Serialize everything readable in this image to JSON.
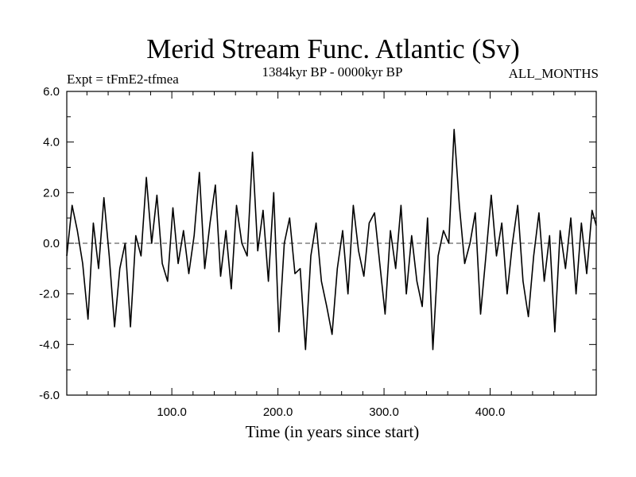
{
  "chart_data": {
    "type": "line",
    "title": "Merid Stream Func. Atlantic (Sv)",
    "subtitle_left": "Expt = tFmE2-tfmea",
    "subtitle_center": "1384kyr BP - 0000kyr BP",
    "subtitle_right": "ALL_MONTHS",
    "xlabel": "Time (in years since start)",
    "ylabel": "",
    "xlim": [
      1,
      500
    ],
    "ylim": [
      -6,
      6
    ],
    "xticks": [
      100,
      200,
      300,
      400
    ],
    "xtick_labels": [
      "100.0",
      "200.0",
      "300.0",
      "400.0"
    ],
    "yticks": [
      -6,
      -4,
      -2,
      0,
      2,
      4,
      6
    ],
    "ytick_labels": [
      "-6.0",
      "-4.0",
      "-2.0",
      "0.0",
      "2.0",
      "4.0",
      "6.0"
    ],
    "zero_line": "dashed",
    "series": [
      {
        "name": "Merid Stream Func. Atlantic",
        "x": [
          1,
          6,
          11,
          16,
          21,
          26,
          31,
          36,
          41,
          46,
          51,
          56,
          61,
          66,
          71,
          76,
          81,
          86,
          91,
          96,
          101,
          106,
          111,
          116,
          121,
          126,
          131,
          136,
          141,
          146,
          151,
          156,
          161,
          166,
          171,
          176,
          181,
          186,
          191,
          196,
          201,
          206,
          211,
          216,
          221,
          226,
          231,
          236,
          241,
          246,
          251,
          256,
          261,
          266,
          271,
          276,
          281,
          286,
          291,
          296,
          301,
          306,
          311,
          316,
          321,
          326,
          331,
          336,
          341,
          346,
          351,
          356,
          361,
          366,
          371,
          376,
          381,
          386,
          391,
          396,
          401,
          406,
          411,
          416,
          421,
          426,
          431,
          436,
          441,
          446,
          451,
          456,
          461,
          466,
          471,
          476,
          481,
          486,
          491,
          496,
          500
        ],
        "values": [
          -0.5,
          1.5,
          0.5,
          -0.8,
          -3.0,
          0.8,
          -1.0,
          1.8,
          -0.5,
          -3.3,
          -1.0,
          0.0,
          -3.3,
          0.3,
          -0.5,
          2.6,
          0.0,
          1.9,
          -0.8,
          -1.5,
          1.4,
          -0.8,
          0.5,
          -1.2,
          0.3,
          2.8,
          -1.0,
          0.8,
          2.3,
          -1.3,
          0.5,
          -1.8,
          1.5,
          0.0,
          -0.5,
          3.6,
          -0.3,
          1.3,
          -1.5,
          2.0,
          -3.5,
          0.0,
          1.0,
          -1.2,
          -1.0,
          -4.2,
          -0.5,
          0.8,
          -1.5,
          -2.5,
          -3.6,
          -1.0,
          0.5,
          -2.0,
          1.5,
          -0.3,
          -1.3,
          0.8,
          1.2,
          -0.8,
          -2.8,
          0.5,
          -1.0,
          1.5,
          -2.0,
          0.3,
          -1.5,
          -2.5,
          1.0,
          -4.2,
          -0.5,
          0.5,
          0.0,
          4.5,
          1.5,
          -0.8,
          0.0,
          1.2,
          -2.8,
          -0.5,
          1.9,
          -0.5,
          0.8,
          -2.0,
          0.0,
          1.5,
          -1.5,
          -2.9,
          -0.5,
          1.2,
          -1.5,
          0.3,
          -3.5,
          0.5,
          -1.0,
          1.0,
          -2.0,
          0.8,
          -1.2,
          1.3,
          0.7
        ]
      }
    ]
  }
}
